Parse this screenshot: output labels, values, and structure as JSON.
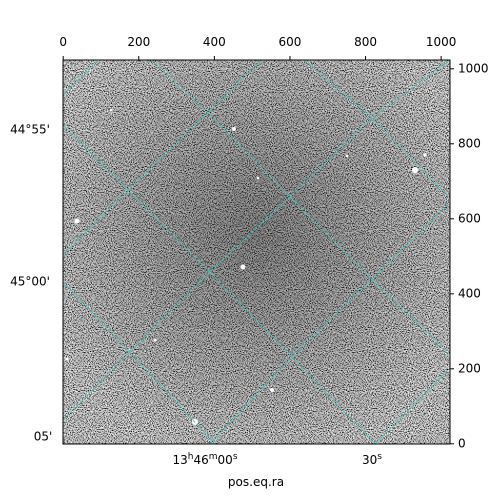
{
  "chart_data": {
    "type": "image",
    "xlabel": "pos.eq.ra",
    "xlim": [
      -0.5,
      1023.5
    ],
    "xticks": [
      0,
      200,
      400,
      600,
      800,
      1000
    ],
    "ylim": [
      -0.5,
      1023.5
    ],
    "yticks": [
      0,
      200,
      400,
      600,
      800,
      1000
    ],
    "dec_labels": [
      "44°55'",
      "45°00'",
      "05'"
    ],
    "ra_labels": [
      [
        "13",
        "h",
        "46",
        "m",
        "00",
        "s"
      ],
      [
        "30",
        "s"
      ]
    ],
    "grid_color": "#33cccc"
  }
}
